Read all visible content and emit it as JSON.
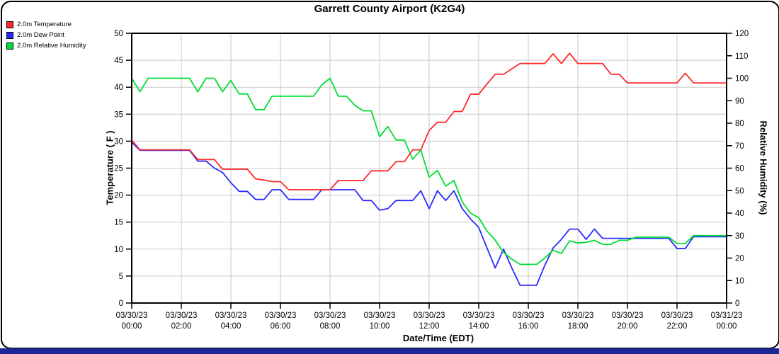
{
  "window": {
    "bottom_bar_color": "#1c2694"
  },
  "chart_data": {
    "type": "line",
    "title": "Garrett County Airport (K2G4)",
    "xlabel": "Date/Time (EDT)",
    "ylabel_left": "Temperature ( F )",
    "ylabel_right": "Relative Humidity (%)",
    "grid": true,
    "legend_position": "top-left-outside",
    "y_left_range": [
      0,
      50
    ],
    "y_left_ticks": [
      0,
      5,
      10,
      15,
      20,
      25,
      30,
      35,
      40,
      45,
      50
    ],
    "y_right_range": [
      0,
      120
    ],
    "y_right_ticks": [
      0,
      10,
      20,
      30,
      40,
      50,
      60,
      70,
      80,
      90,
      100,
      110,
      120
    ],
    "x_range_hours": [
      0,
      24
    ],
    "x_ticks": [
      {
        "date": "03/30/23",
        "time": "00:00"
      },
      {
        "date": "03/30/23",
        "time": "02:00"
      },
      {
        "date": "03/30/23",
        "time": "04:00"
      },
      {
        "date": "03/30/23",
        "time": "06:00"
      },
      {
        "date": "03/30/23",
        "time": "08:00"
      },
      {
        "date": "03/30/23",
        "time": "10:00"
      },
      {
        "date": "03/30/23",
        "time": "12:00"
      },
      {
        "date": "03/30/23",
        "time": "14:00"
      },
      {
        "date": "03/30/23",
        "time": "16:00"
      },
      {
        "date": "03/30/23",
        "time": "18:00"
      },
      {
        "date": "03/30/23",
        "time": "20:00"
      },
      {
        "date": "03/30/23",
        "time": "22:00"
      },
      {
        "date": "03/31/23",
        "time": "00:00"
      }
    ],
    "x_step_minutes": 20,
    "series": [
      {
        "name": "2.0m Temperature",
        "axis": "left",
        "color": "#ff2a2a",
        "values": [
          30.2,
          28.4,
          28.4,
          28.4,
          28.4,
          28.4,
          28.4,
          28.4,
          26.6,
          26.6,
          26.6,
          24.8,
          24.8,
          24.8,
          24.8,
          23.0,
          22.8,
          22.5,
          22.5,
          21.0,
          21.0,
          21.0,
          21.0,
          21.0,
          21.0,
          22.7,
          22.7,
          22.7,
          22.7,
          24.5,
          24.5,
          24.5,
          26.2,
          26.2,
          28.4,
          28.4,
          32.0,
          33.5,
          33.5,
          35.5,
          35.5,
          38.7,
          38.7,
          40.6,
          42.4,
          42.4,
          43.4,
          44.4,
          44.4,
          44.4,
          44.4,
          46.2,
          44.4,
          46.3,
          44.4,
          44.4,
          44.4,
          44.4,
          42.4,
          42.4,
          40.8,
          40.8,
          40.8,
          40.8,
          40.8,
          40.8,
          40.8,
          42.6,
          40.8,
          40.8,
          40.8,
          40.8,
          40.8
        ]
      },
      {
        "name": "2.0m Dew Point",
        "axis": "left",
        "color": "#2a2aff",
        "values": [
          29.8,
          28.3,
          28.3,
          28.3,
          28.3,
          28.3,
          28.3,
          28.3,
          26.3,
          26.3,
          25.0,
          24.2,
          22.3,
          20.7,
          20.7,
          19.2,
          19.2,
          21.0,
          21.0,
          19.2,
          19.2,
          19.2,
          19.2,
          21.0,
          21.0,
          21.0,
          21.0,
          21.0,
          19.0,
          19.0,
          17.2,
          17.5,
          19.0,
          19.0,
          19.0,
          20.8,
          17.5,
          20.8,
          19.0,
          20.8,
          17.5,
          15.6,
          14.0,
          10.2,
          6.5,
          10.0,
          6.5,
          3.3,
          3.3,
          3.3,
          7.0,
          10.2,
          11.8,
          13.7,
          13.7,
          11.8,
          13.7,
          12.0,
          12.0,
          12.0,
          12.0,
          12.0,
          12.0,
          12.0,
          12.0,
          12.0,
          10.1,
          10.1,
          12.3,
          12.3,
          12.3,
          12.3,
          12.3
        ]
      },
      {
        "name": "2.0m Relative Humidity",
        "axis": "right",
        "color": "#00dd33",
        "values": [
          100,
          94,
          100,
          100,
          100,
          100,
          100,
          100,
          94,
          100,
          100,
          94,
          99,
          93,
          93,
          86,
          86,
          92,
          92,
          92,
          92,
          92,
          92,
          97,
          100,
          92,
          92,
          88,
          85.5,
          85.5,
          74,
          78.5,
          72.5,
          72.5,
          64,
          68,
          56,
          59,
          52,
          54.5,
          45,
          40,
          38,
          32,
          28,
          22.5,
          19.5,
          17.2,
          17.2,
          17.2,
          20,
          23.5,
          22,
          27.7,
          26.7,
          27,
          27.9,
          26.1,
          26.1,
          27.9,
          27.9,
          29.3,
          29.3,
          29.3,
          29.3,
          29.3,
          26.5,
          26.5,
          30,
          30,
          30,
          30,
          30
        ]
      }
    ]
  }
}
